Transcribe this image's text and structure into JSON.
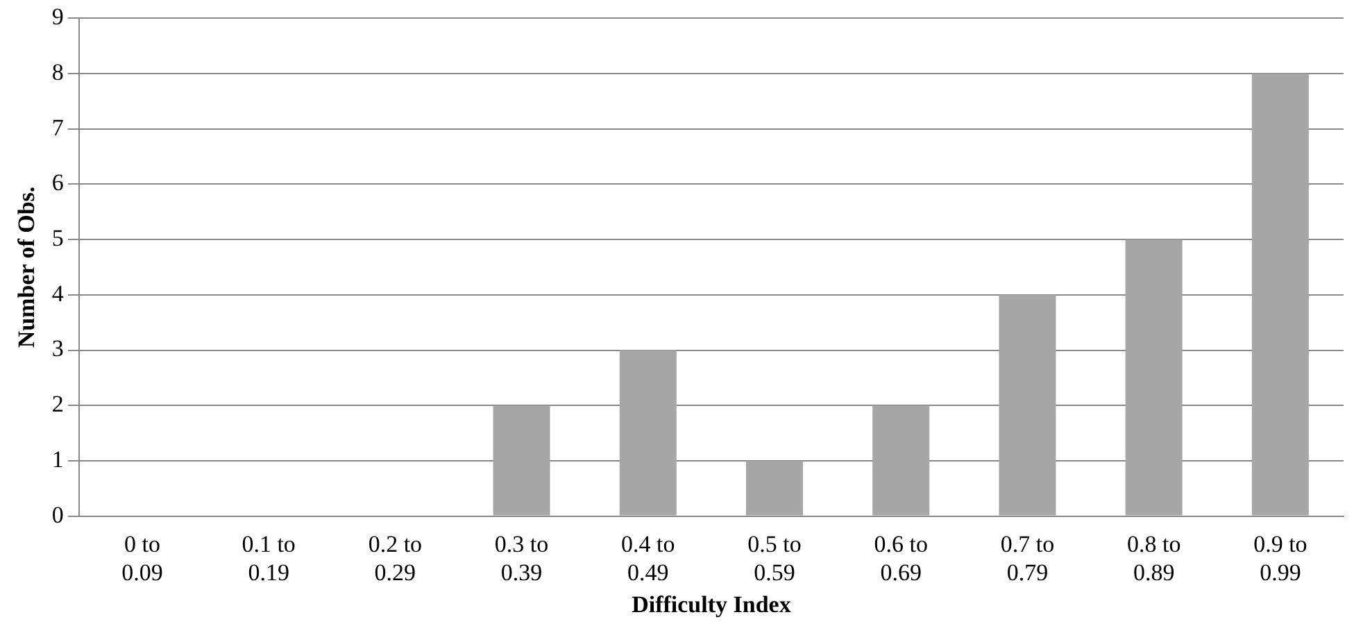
{
  "chart_data": {
    "type": "bar",
    "xlabel": "Difficulty Index",
    "ylabel": "Number of Obs.",
    "categories": [
      "0 to 0.09",
      "0.1 to 0.19",
      "0.2 to 0.29",
      "0.3 to 0.39",
      "0.4 to 0.49",
      "0.5 to 0.59",
      "0.6 to 0.69",
      "0.7 to 0.79",
      "0.8 to 0.89",
      "0.9 to 0.99"
    ],
    "values": [
      0,
      0,
      0,
      2,
      3,
      1,
      2,
      4,
      5,
      8
    ],
    "color": "#a6a6a6",
    "ylim": [
      0,
      9
    ],
    "yticks": [
      0,
      1,
      2,
      3,
      4,
      5,
      6,
      7,
      8,
      9
    ],
    "grid": "y",
    "legend": false
  }
}
